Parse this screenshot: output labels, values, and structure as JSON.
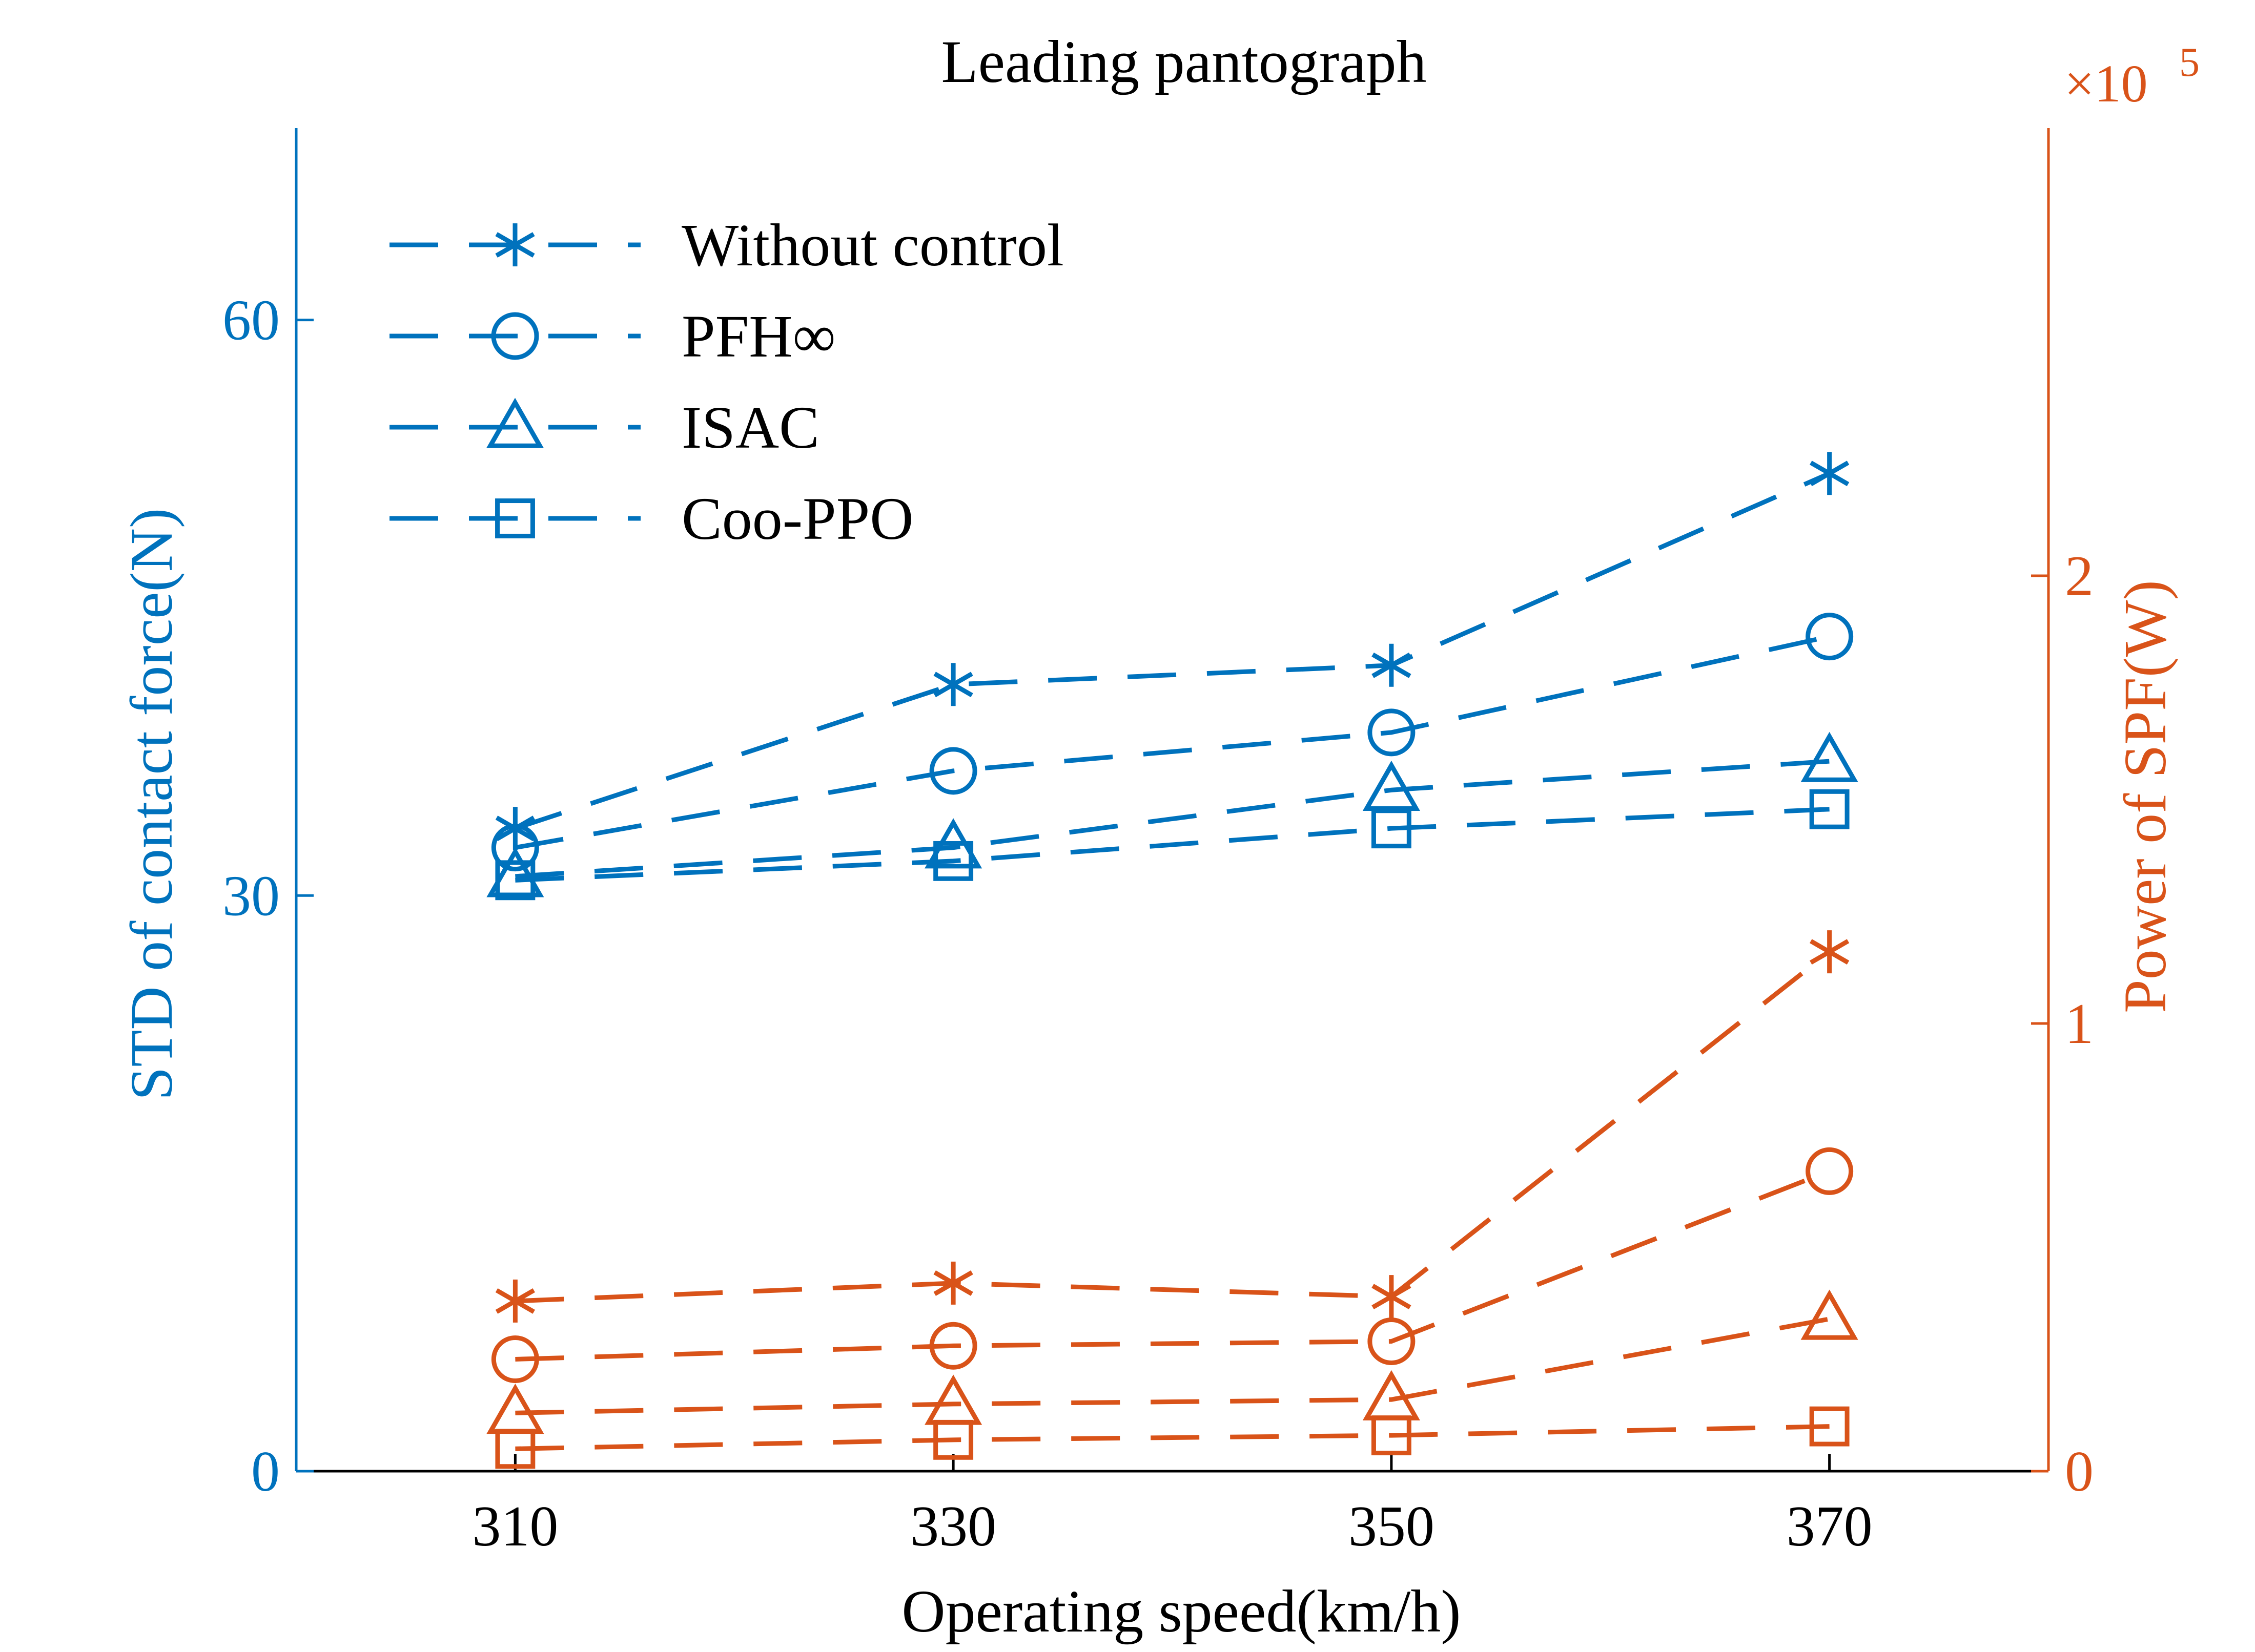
{
  "chart_data": {
    "type": "line",
    "title": "Leading pantograph",
    "xlabel": "Operating speed(km/h)",
    "ylabel_left": "STD of contact force(N)",
    "ylabel_right": "Power of SPF(W)",
    "right_axis_multiplier": "×10",
    "right_axis_exponent": "5",
    "x": [
      310,
      330,
      350,
      370
    ],
    "x_tick_labels": [
      "310",
      "330",
      "350",
      "370"
    ],
    "xlim": [
      300,
      380
    ],
    "ylim_left": [
      0,
      70
    ],
    "y_left_ticks": [
      0,
      30,
      60
    ],
    "y_left_tick_labels": [
      "0",
      "30",
      "60"
    ],
    "ylim_right": [
      0,
      3
    ],
    "y_right_ticks": [
      0,
      1,
      2
    ],
    "y_right_tick_labels": [
      "0",
      "1",
      "2"
    ],
    "grid": false,
    "legend_position": "top-left",
    "colors": {
      "left": "#0072BD",
      "right": "#D95319",
      "axis": "#000000"
    },
    "series": [
      {
        "name": "Without control",
        "axis": "left",
        "marker": "asterisk",
        "values": [
          33.5,
          41,
          42,
          52
        ]
      },
      {
        "name": "PFH∞",
        "axis": "left",
        "marker": "circle",
        "values": [
          32.5,
          36.5,
          38.5,
          43.5
        ]
      },
      {
        "name": "ISAC",
        "axis": "left",
        "marker": "triangle",
        "values": [
          31,
          32.5,
          35.5,
          37
        ]
      },
      {
        "name": "Coo-PPO",
        "axis": "left",
        "marker": "square",
        "values": [
          30.8,
          31.8,
          33.5,
          34.5
        ]
      },
      {
        "axis": "right",
        "marker": "asterisk",
        "values": [
          0.38,
          0.42,
          0.39,
          1.16
        ]
      },
      {
        "axis": "right",
        "marker": "circle",
        "values": [
          0.25,
          0.28,
          0.29,
          0.67
        ]
      },
      {
        "axis": "right",
        "marker": "triangle",
        "values": [
          0.13,
          0.15,
          0.16,
          0.34
        ]
      },
      {
        "axis": "right",
        "marker": "square",
        "values": [
          0.05,
          0.07,
          0.08,
          0.1
        ]
      }
    ]
  }
}
